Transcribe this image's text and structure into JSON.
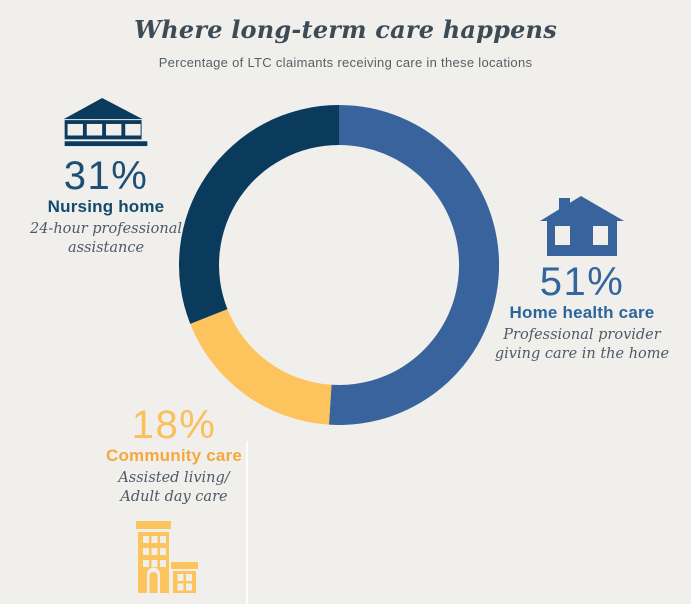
{
  "header": {
    "title": "Where long-term care happens",
    "subtitle": "Percentage of LTC claimants receiving care in these locations"
  },
  "chart_data": {
    "type": "pie",
    "variant": "donut",
    "title": "Where long-term care happens",
    "subtitle": "Percentage of LTC claimants receiving care in these locations",
    "unit": "percent",
    "start_angle_deg": 0,
    "direction": "clockwise",
    "segments": [
      {
        "label": "Home health care",
        "value": 51,
        "color": "#38639d",
        "description": "Professional provider giving care in the home"
      },
      {
        "label": "Community care",
        "value": 18,
        "color": "#fdc35c",
        "description": "Assisted living/ Adult day care"
      },
      {
        "label": "Nursing home",
        "value": 31,
        "color": "#0a3a5c",
        "description": "24-hour professional assistance"
      }
    ]
  },
  "callouts": {
    "nursing_home": {
      "percent": "31%",
      "label": "Nursing home",
      "desc_line1": "24-hour professional",
      "desc_line2": "assistance"
    },
    "home_health": {
      "percent": "51%",
      "label": "Home health care",
      "desc_line1": "Professional provider",
      "desc_line2": "giving care in the home"
    },
    "community": {
      "percent": "18%",
      "label": "Community care",
      "desc_line1": "Assisted living/",
      "desc_line2": "Adult day care"
    }
  },
  "colors": {
    "background": "#f0efec",
    "navy": "#0a3a5c",
    "blue": "#38639d",
    "yellow": "#fdc35c",
    "community_label_orange": "#f6a83d",
    "description_gray": "#4e5a66",
    "title_color": "#3d4b57"
  }
}
